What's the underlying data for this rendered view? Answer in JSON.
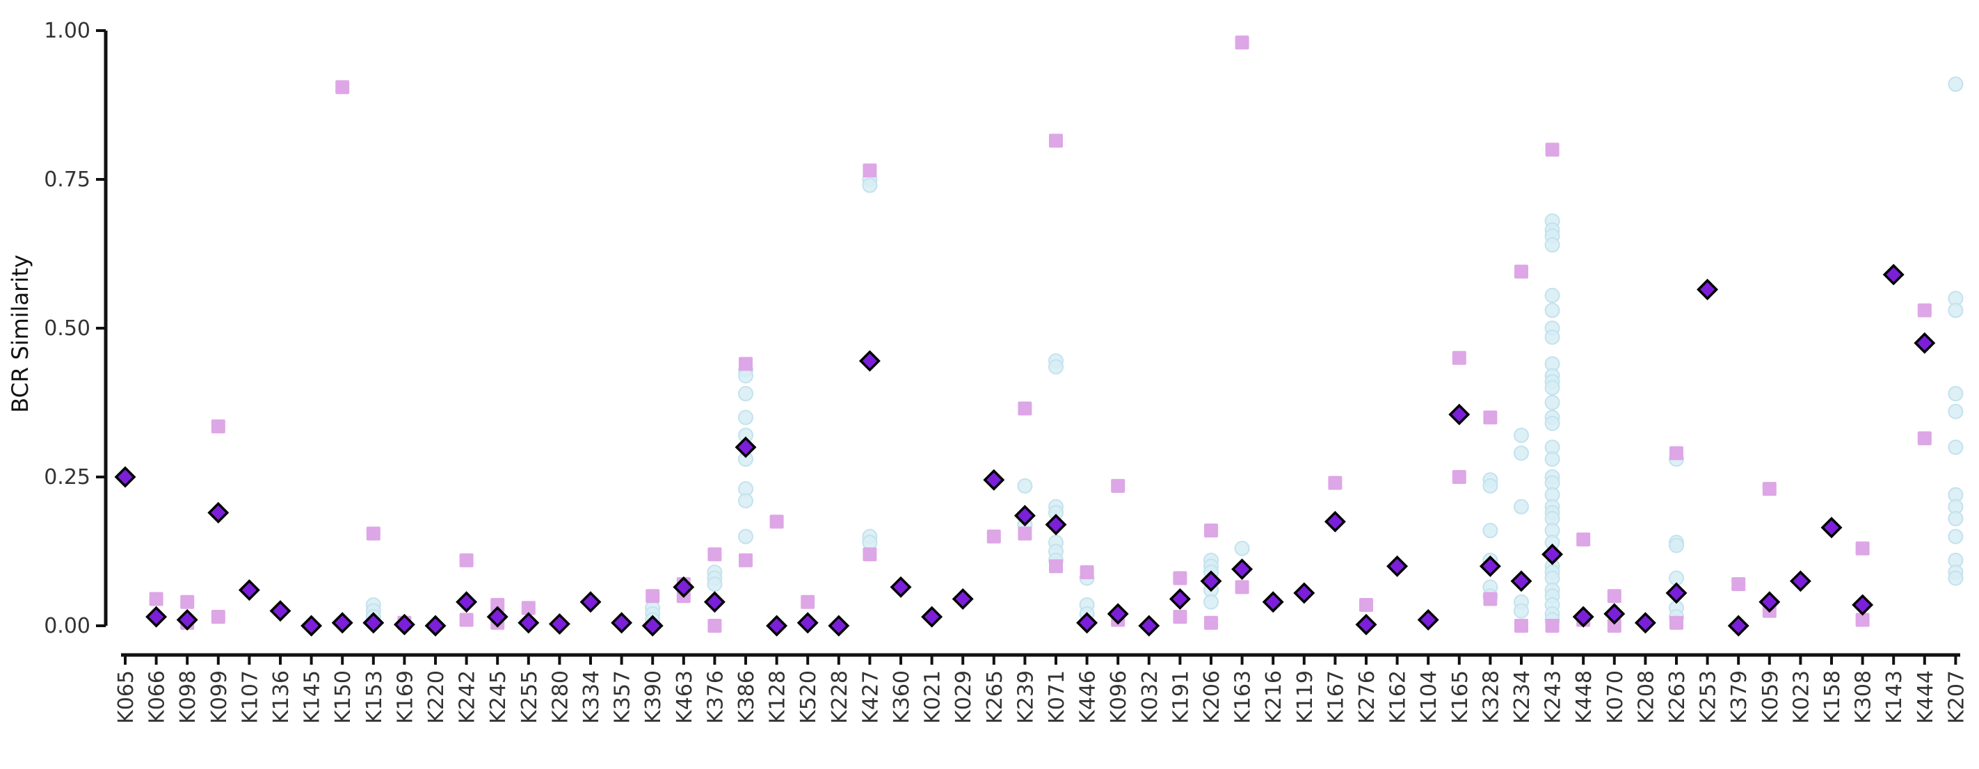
{
  "chart_data": {
    "type": "scatter",
    "ylabel": "BCR Similarity",
    "ylim": [
      0,
      1
    ],
    "yticks": [
      0.0,
      0.25,
      0.5,
      0.75,
      1.0
    ],
    "ytick_labels": [
      "0.00",
      "0.25",
      "0.50",
      "0.75",
      "1.00"
    ],
    "grid": false,
    "legend": "none",
    "categories": [
      "K065",
      "K066",
      "K098",
      "K099",
      "K107",
      "K136",
      "K145",
      "K150",
      "K153",
      "K169",
      "K220",
      "K242",
      "K245",
      "K255",
      "K280",
      "K334",
      "K357",
      "K390",
      "K463",
      "K376",
      "K386",
      "K128",
      "K520",
      "K228",
      "K427",
      "K360",
      "K021",
      "K029",
      "K265",
      "K239",
      "K071",
      "K446",
      "K096",
      "K032",
      "K191",
      "K206",
      "K163",
      "K216",
      "K119",
      "K167",
      "K276",
      "K162",
      "K104",
      "K165",
      "K328",
      "K234",
      "K243",
      "K448",
      "K070",
      "K208",
      "K263",
      "K253",
      "K379",
      "K059",
      "K023",
      "K158",
      "K308",
      "K143",
      "K444",
      "K207"
    ],
    "colors": {
      "circle_fill": "#d7edf5",
      "square_fill": "#dda6e6",
      "diamond_fill": "#7b1fd8",
      "diamond_stroke": "#000000",
      "axis": "#111111"
    },
    "series": [
      {
        "marker": "circle",
        "points": [
          [
            8,
            0.035
          ],
          [
            8,
            0.025
          ],
          [
            8,
            0.015
          ],
          [
            8,
            0.005
          ],
          [
            17,
            0.03
          ],
          [
            17,
            0.02
          ],
          [
            17,
            0.01
          ],
          [
            19,
            0.09
          ],
          [
            19,
            0.08
          ],
          [
            19,
            0.07
          ],
          [
            20,
            0.43
          ],
          [
            20,
            0.42
          ],
          [
            20,
            0.39
          ],
          [
            20,
            0.35
          ],
          [
            20,
            0.32
          ],
          [
            20,
            0.28
          ],
          [
            20,
            0.23
          ],
          [
            20,
            0.21
          ],
          [
            20,
            0.15
          ],
          [
            24,
            0.75
          ],
          [
            24,
            0.74
          ],
          [
            24,
            0.15
          ],
          [
            24,
            0.14
          ],
          [
            29,
            0.235
          ],
          [
            29,
            0.17
          ],
          [
            30,
            0.445
          ],
          [
            30,
            0.435
          ],
          [
            30,
            0.2
          ],
          [
            30,
            0.19
          ],
          [
            30,
            0.14
          ],
          [
            30,
            0.125
          ],
          [
            30,
            0.11
          ],
          [
            31,
            0.08
          ],
          [
            31,
            0.035
          ],
          [
            31,
            0.02
          ],
          [
            35,
            0.11
          ],
          [
            35,
            0.1
          ],
          [
            35,
            0.09
          ],
          [
            35,
            0.06
          ],
          [
            35,
            0.04
          ],
          [
            36,
            0.13
          ],
          [
            44,
            0.245
          ],
          [
            44,
            0.235
          ],
          [
            44,
            0.16
          ],
          [
            44,
            0.11
          ],
          [
            44,
            0.065
          ],
          [
            44,
            0.05
          ],
          [
            45,
            0.32
          ],
          [
            45,
            0.29
          ],
          [
            45,
            0.2
          ],
          [
            45,
            0.04
          ],
          [
            45,
            0.025
          ],
          [
            46,
            0.68
          ],
          [
            46,
            0.665
          ],
          [
            46,
            0.655
          ],
          [
            46,
            0.64
          ],
          [
            46,
            0.555
          ],
          [
            46,
            0.53
          ],
          [
            46,
            0.5
          ],
          [
            46,
            0.485
          ],
          [
            46,
            0.44
          ],
          [
            46,
            0.42
          ],
          [
            46,
            0.41
          ],
          [
            46,
            0.4
          ],
          [
            46,
            0.375
          ],
          [
            46,
            0.35
          ],
          [
            46,
            0.34
          ],
          [
            46,
            0.3
          ],
          [
            46,
            0.28
          ],
          [
            46,
            0.25
          ],
          [
            46,
            0.24
          ],
          [
            46,
            0.22
          ],
          [
            46,
            0.2
          ],
          [
            46,
            0.19
          ],
          [
            46,
            0.18
          ],
          [
            46,
            0.16
          ],
          [
            46,
            0.14
          ],
          [
            46,
            0.12
          ],
          [
            46,
            0.1
          ],
          [
            46,
            0.09
          ],
          [
            46,
            0.08
          ],
          [
            46,
            0.06
          ],
          [
            46,
            0.05
          ],
          [
            46,
            0.035
          ],
          [
            46,
            0.02
          ],
          [
            46,
            0.01
          ],
          [
            50,
            0.28
          ],
          [
            50,
            0.14
          ],
          [
            50,
            0.135
          ],
          [
            50,
            0.08
          ],
          [
            50,
            0.03
          ],
          [
            50,
            0.015
          ],
          [
            59,
            0.91
          ],
          [
            59,
            0.55
          ],
          [
            59,
            0.53
          ],
          [
            59,
            0.39
          ],
          [
            59,
            0.36
          ],
          [
            59,
            0.3
          ],
          [
            59,
            0.22
          ],
          [
            59,
            0.2
          ],
          [
            59,
            0.18
          ],
          [
            59,
            0.15
          ],
          [
            59,
            0.11
          ],
          [
            59,
            0.09
          ],
          [
            59,
            0.08
          ]
        ]
      },
      {
        "marker": "square",
        "points": [
          [
            1,
            0.045
          ],
          [
            2,
            0.04
          ],
          [
            2,
            0.005
          ],
          [
            3,
            0.335
          ],
          [
            3,
            0.015
          ],
          [
            7,
            0.905
          ],
          [
            8,
            0.155
          ],
          [
            9,
            0.005
          ],
          [
            11,
            0.11
          ],
          [
            11,
            0.01
          ],
          [
            12,
            0.035
          ],
          [
            12,
            0.005
          ],
          [
            13,
            0.03
          ],
          [
            17,
            0.05
          ],
          [
            18,
            0.07
          ],
          [
            18,
            0.05
          ],
          [
            19,
            0.12
          ],
          [
            19,
            0.0
          ],
          [
            20,
            0.44
          ],
          [
            20,
            0.11
          ],
          [
            21,
            0.175
          ],
          [
            22,
            0.04
          ],
          [
            24,
            0.765
          ],
          [
            24,
            0.12
          ],
          [
            28,
            0.15
          ],
          [
            29,
            0.365
          ],
          [
            29,
            0.155
          ],
          [
            30,
            0.815
          ],
          [
            30,
            0.1
          ],
          [
            31,
            0.09
          ],
          [
            32,
            0.235
          ],
          [
            32,
            0.01
          ],
          [
            34,
            0.08
          ],
          [
            34,
            0.015
          ],
          [
            35,
            0.16
          ],
          [
            35,
            0.005
          ],
          [
            36,
            0.98
          ],
          [
            36,
            0.065
          ],
          [
            39,
            0.24
          ],
          [
            40,
            0.035
          ],
          [
            43,
            0.45
          ],
          [
            43,
            0.25
          ],
          [
            44,
            0.35
          ],
          [
            44,
            0.045
          ],
          [
            45,
            0.595
          ],
          [
            45,
            0.0
          ],
          [
            46,
            0.8
          ],
          [
            46,
            0.0
          ],
          [
            47,
            0.145
          ],
          [
            47,
            0.01
          ],
          [
            48,
            0.05
          ],
          [
            48,
            0.0
          ],
          [
            50,
            0.29
          ],
          [
            50,
            0.005
          ],
          [
            52,
            0.07
          ],
          [
            53,
            0.23
          ],
          [
            53,
            0.025
          ],
          [
            56,
            0.13
          ],
          [
            56,
            0.01
          ],
          [
            58,
            0.53
          ],
          [
            58,
            0.315
          ]
        ]
      },
      {
        "marker": "diamond",
        "points": [
          [
            0,
            0.25
          ],
          [
            1,
            0.015
          ],
          [
            2,
            0.01
          ],
          [
            3,
            0.19
          ],
          [
            4,
            0.06
          ],
          [
            5,
            0.025
          ],
          [
            6,
            0.0
          ],
          [
            7,
            0.005
          ],
          [
            8,
            0.005
          ],
          [
            9,
            0.002
          ],
          [
            10,
            0.0
          ],
          [
            11,
            0.04
          ],
          [
            12,
            0.015
          ],
          [
            13,
            0.005
          ],
          [
            14,
            0.003
          ],
          [
            15,
            0.04
          ],
          [
            16,
            0.005
          ],
          [
            17,
            0.0
          ],
          [
            18,
            0.065
          ],
          [
            19,
            0.04
          ],
          [
            20,
            0.3
          ],
          [
            21,
            0.0
          ],
          [
            22,
            0.005
          ],
          [
            23,
            0.0
          ],
          [
            24,
            0.445
          ],
          [
            25,
            0.065
          ],
          [
            26,
            0.015
          ],
          [
            27,
            0.045
          ],
          [
            28,
            0.245
          ],
          [
            29,
            0.185
          ],
          [
            30,
            0.17
          ],
          [
            31,
            0.005
          ],
          [
            32,
            0.02
          ],
          [
            33,
            0.0
          ],
          [
            34,
            0.045
          ],
          [
            35,
            0.075
          ],
          [
            36,
            0.095
          ],
          [
            37,
            0.04
          ],
          [
            38,
            0.055
          ],
          [
            39,
            0.175
          ],
          [
            40,
            0.002
          ],
          [
            41,
            0.1
          ],
          [
            42,
            0.01
          ],
          [
            43,
            0.355
          ],
          [
            44,
            0.1
          ],
          [
            45,
            0.075
          ],
          [
            46,
            0.12
          ],
          [
            47,
            0.015
          ],
          [
            48,
            0.02
          ],
          [
            49,
            0.005
          ],
          [
            50,
            0.055
          ],
          [
            51,
            0.565
          ],
          [
            52,
            0.0
          ],
          [
            53,
            0.04
          ],
          [
            54,
            0.075
          ],
          [
            55,
            0.165
          ],
          [
            56,
            0.035
          ],
          [
            57,
            0.59
          ],
          [
            58,
            0.475
          ]
        ]
      }
    ]
  }
}
